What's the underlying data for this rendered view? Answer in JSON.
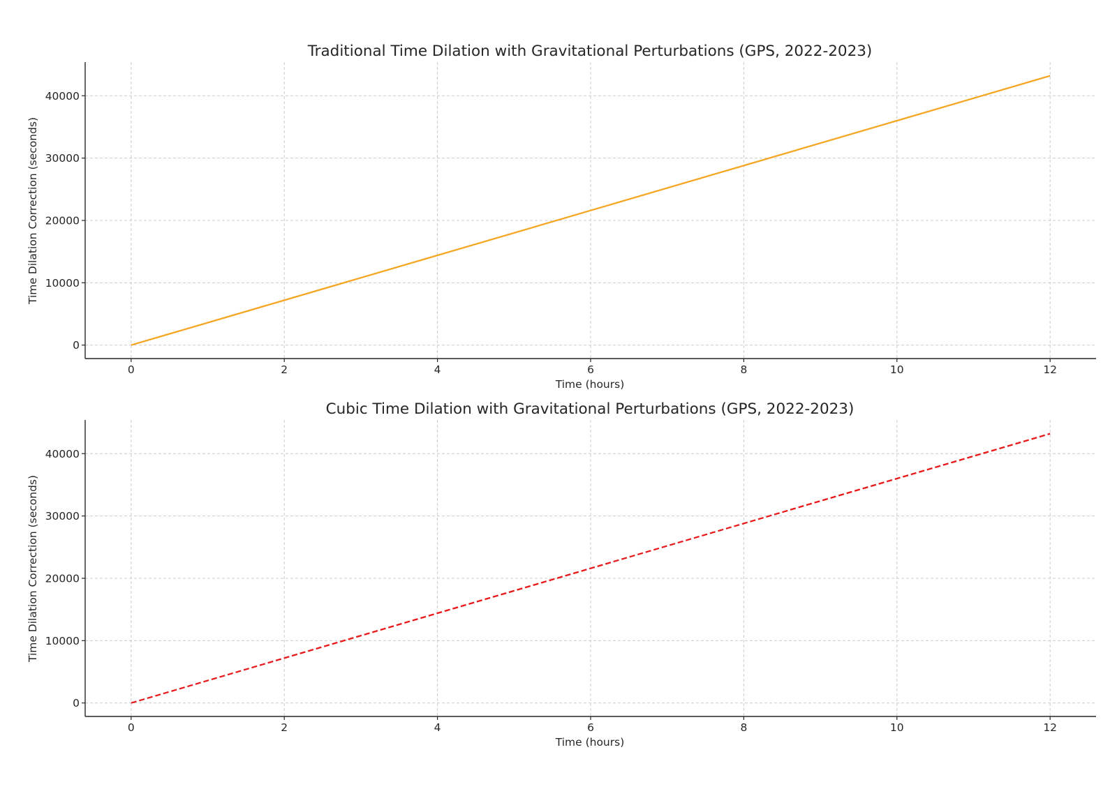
{
  "chart_data": [
    {
      "type": "line",
      "title": "Traditional Time Dilation with Gravitational Perturbations (GPS, 2022-2023)",
      "xlabel": "Time (hours)",
      "ylabel": "Time Dilation Correction (seconds)",
      "xlim": [
        -0.6,
        12.6
      ],
      "ylim": [
        -2160,
        45400
      ],
      "xticks": [
        0,
        2,
        4,
        6,
        8,
        10,
        12
      ],
      "yticks": [
        0,
        10000,
        20000,
        30000,
        40000
      ],
      "grid": true,
      "legend": false,
      "series": [
        {
          "color": "#f5a623",
          "line_style": "solid",
          "x": [
            0,
            2,
            4,
            6,
            8,
            10,
            12
          ],
          "y": [
            0,
            7200,
            14400,
            21600,
            28800,
            36000,
            43200
          ]
        }
      ]
    },
    {
      "type": "line",
      "title": "Cubic Time Dilation with Gravitational Perturbations (GPS, 2022-2023)",
      "xlabel": "Time (hours)",
      "ylabel": "Time Dilation Correction (seconds)",
      "xlim": [
        -0.6,
        12.6
      ],
      "ylim": [
        -2160,
        45400
      ],
      "xticks": [
        0,
        2,
        4,
        6,
        8,
        10,
        12
      ],
      "yticks": [
        0,
        10000,
        20000,
        30000,
        40000
      ],
      "grid": true,
      "legend": false,
      "series": [
        {
          "color": "#e8191b",
          "line_style": "dashed",
          "x": [
            0,
            2,
            4,
            6,
            8,
            10,
            12
          ],
          "y": [
            0,
            7200,
            14400,
            21600,
            28800,
            36000,
            43200
          ]
        }
      ]
    }
  ]
}
